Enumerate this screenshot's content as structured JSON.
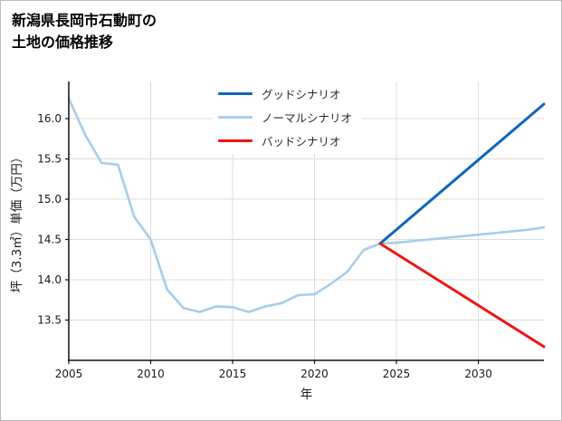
{
  "header": {
    "title_lines": [
      "新潟県長岡市石動町の",
      "土地の価格推移"
    ]
  },
  "chart_data": {
    "type": "line",
    "title": "新潟県長岡市石動町の土地の価格推移",
    "xlabel": "年",
    "ylabel": "坪（3.3㎡）単価（万円）",
    "xlim": [
      2005,
      2034
    ],
    "ylim": [
      13.0,
      16.45
    ],
    "xticks": [
      2005,
      2010,
      2015,
      2020,
      2025,
      2030
    ],
    "yticks": [
      13.5,
      14.0,
      14.5,
      15.0,
      15.5,
      16.0
    ],
    "grid": true,
    "legend_position": "upper center",
    "series": [
      {
        "key": "good",
        "name": "グッドシナリオ",
        "color": "#0e67b8",
        "x": [
          2024,
          2034
        ],
        "y": [
          14.45,
          16.18
        ]
      },
      {
        "key": "normal",
        "name": "ノーマルシナリオ",
        "color": "#a6cee9",
        "x": [
          2005,
          2006,
          2007,
          2008,
          2009,
          2010,
          2011,
          2012,
          2013,
          2014,
          2015,
          2016,
          2017,
          2018,
          2019,
          2020,
          2021,
          2022,
          2023,
          2024,
          2025,
          2026,
          2027,
          2028,
          2029,
          2030,
          2031,
          2032,
          2033,
          2034
        ],
        "y": [
          16.25,
          15.8,
          15.45,
          15.43,
          14.78,
          14.5,
          13.88,
          13.65,
          13.6,
          13.67,
          13.66,
          13.6,
          13.67,
          13.71,
          13.81,
          13.82,
          13.95,
          14.1,
          14.37,
          14.45,
          14.46,
          14.48,
          14.5,
          14.52,
          14.54,
          14.56,
          14.58,
          14.6,
          14.62,
          14.65
        ]
      },
      {
        "key": "bad",
        "name": "バッドシナリオ",
        "color": "#ee1515",
        "x": [
          2024,
          2034
        ],
        "y": [
          14.45,
          13.17
        ]
      }
    ]
  }
}
